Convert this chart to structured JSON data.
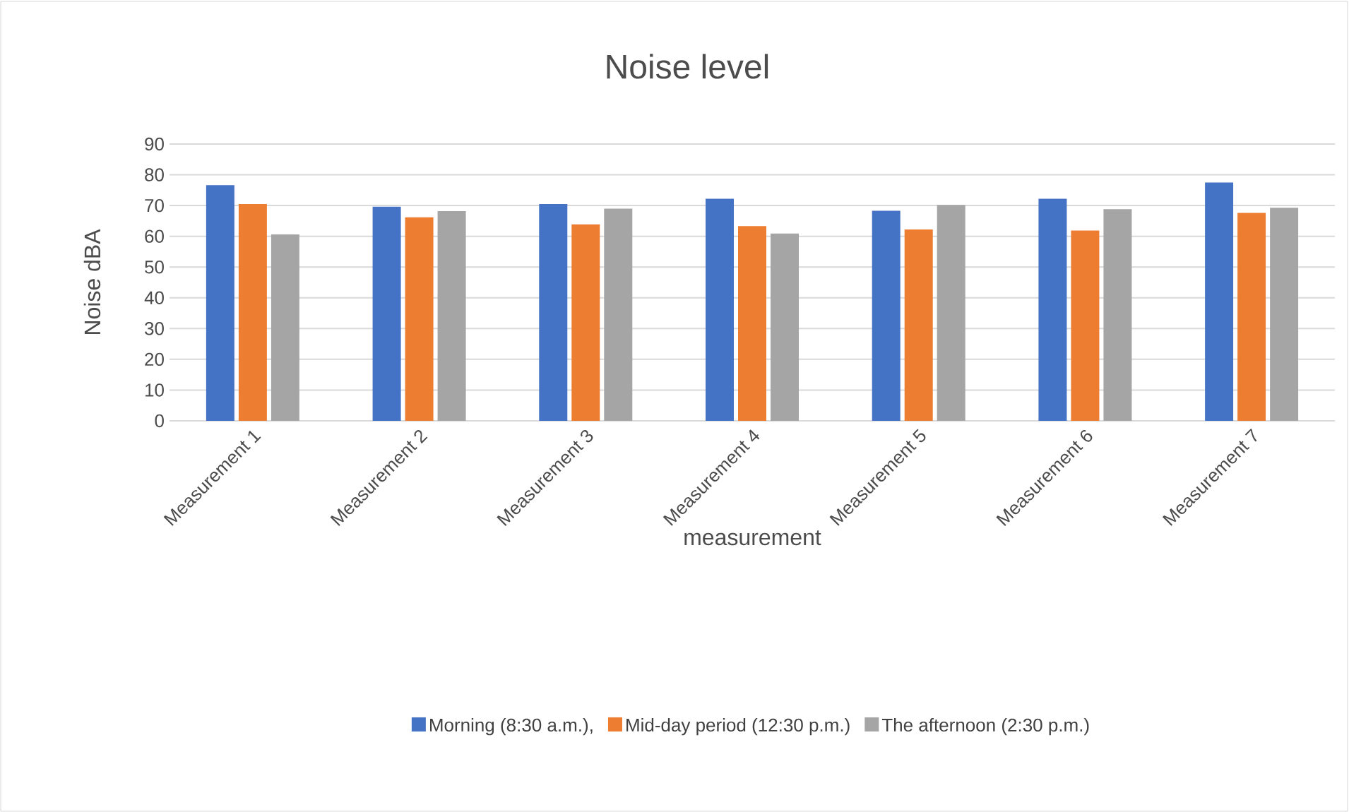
{
  "chart_data": {
    "type": "bar",
    "title": "Noise level",
    "xlabel": "measurement",
    "ylabel": "Noise dBA",
    "categories": [
      "Measurement 1",
      "Measurement 2",
      "Measurement 3",
      "Measurement 4",
      "Measurement 5",
      "Measurement 6",
      "Measurement 7"
    ],
    "series": [
      {
        "name": "Morning (8:30 a.m.),",
        "color": "#4472c4",
        "values": [
          76.6,
          69.6,
          70.5,
          72.2,
          68.3,
          72.2,
          77.5
        ]
      },
      {
        "name": "Mid-day period (12:30 p.m.)",
        "color": "#ed7d31",
        "values": [
          70.5,
          66.2,
          63.9,
          63.3,
          62.2,
          61.9,
          67.6
        ]
      },
      {
        "name": "The afternoon (2:30 p.m.)",
        "color": "#a5a5a5",
        "values": [
          60.6,
          68.2,
          69.0,
          60.9,
          70.2,
          68.8,
          69.3
        ]
      }
    ],
    "ylim": [
      0,
      90
    ],
    "yticks": [
      0,
      10,
      20,
      30,
      40,
      50,
      60,
      70,
      80,
      90
    ],
    "grid": "y",
    "legend": "bottom"
  }
}
